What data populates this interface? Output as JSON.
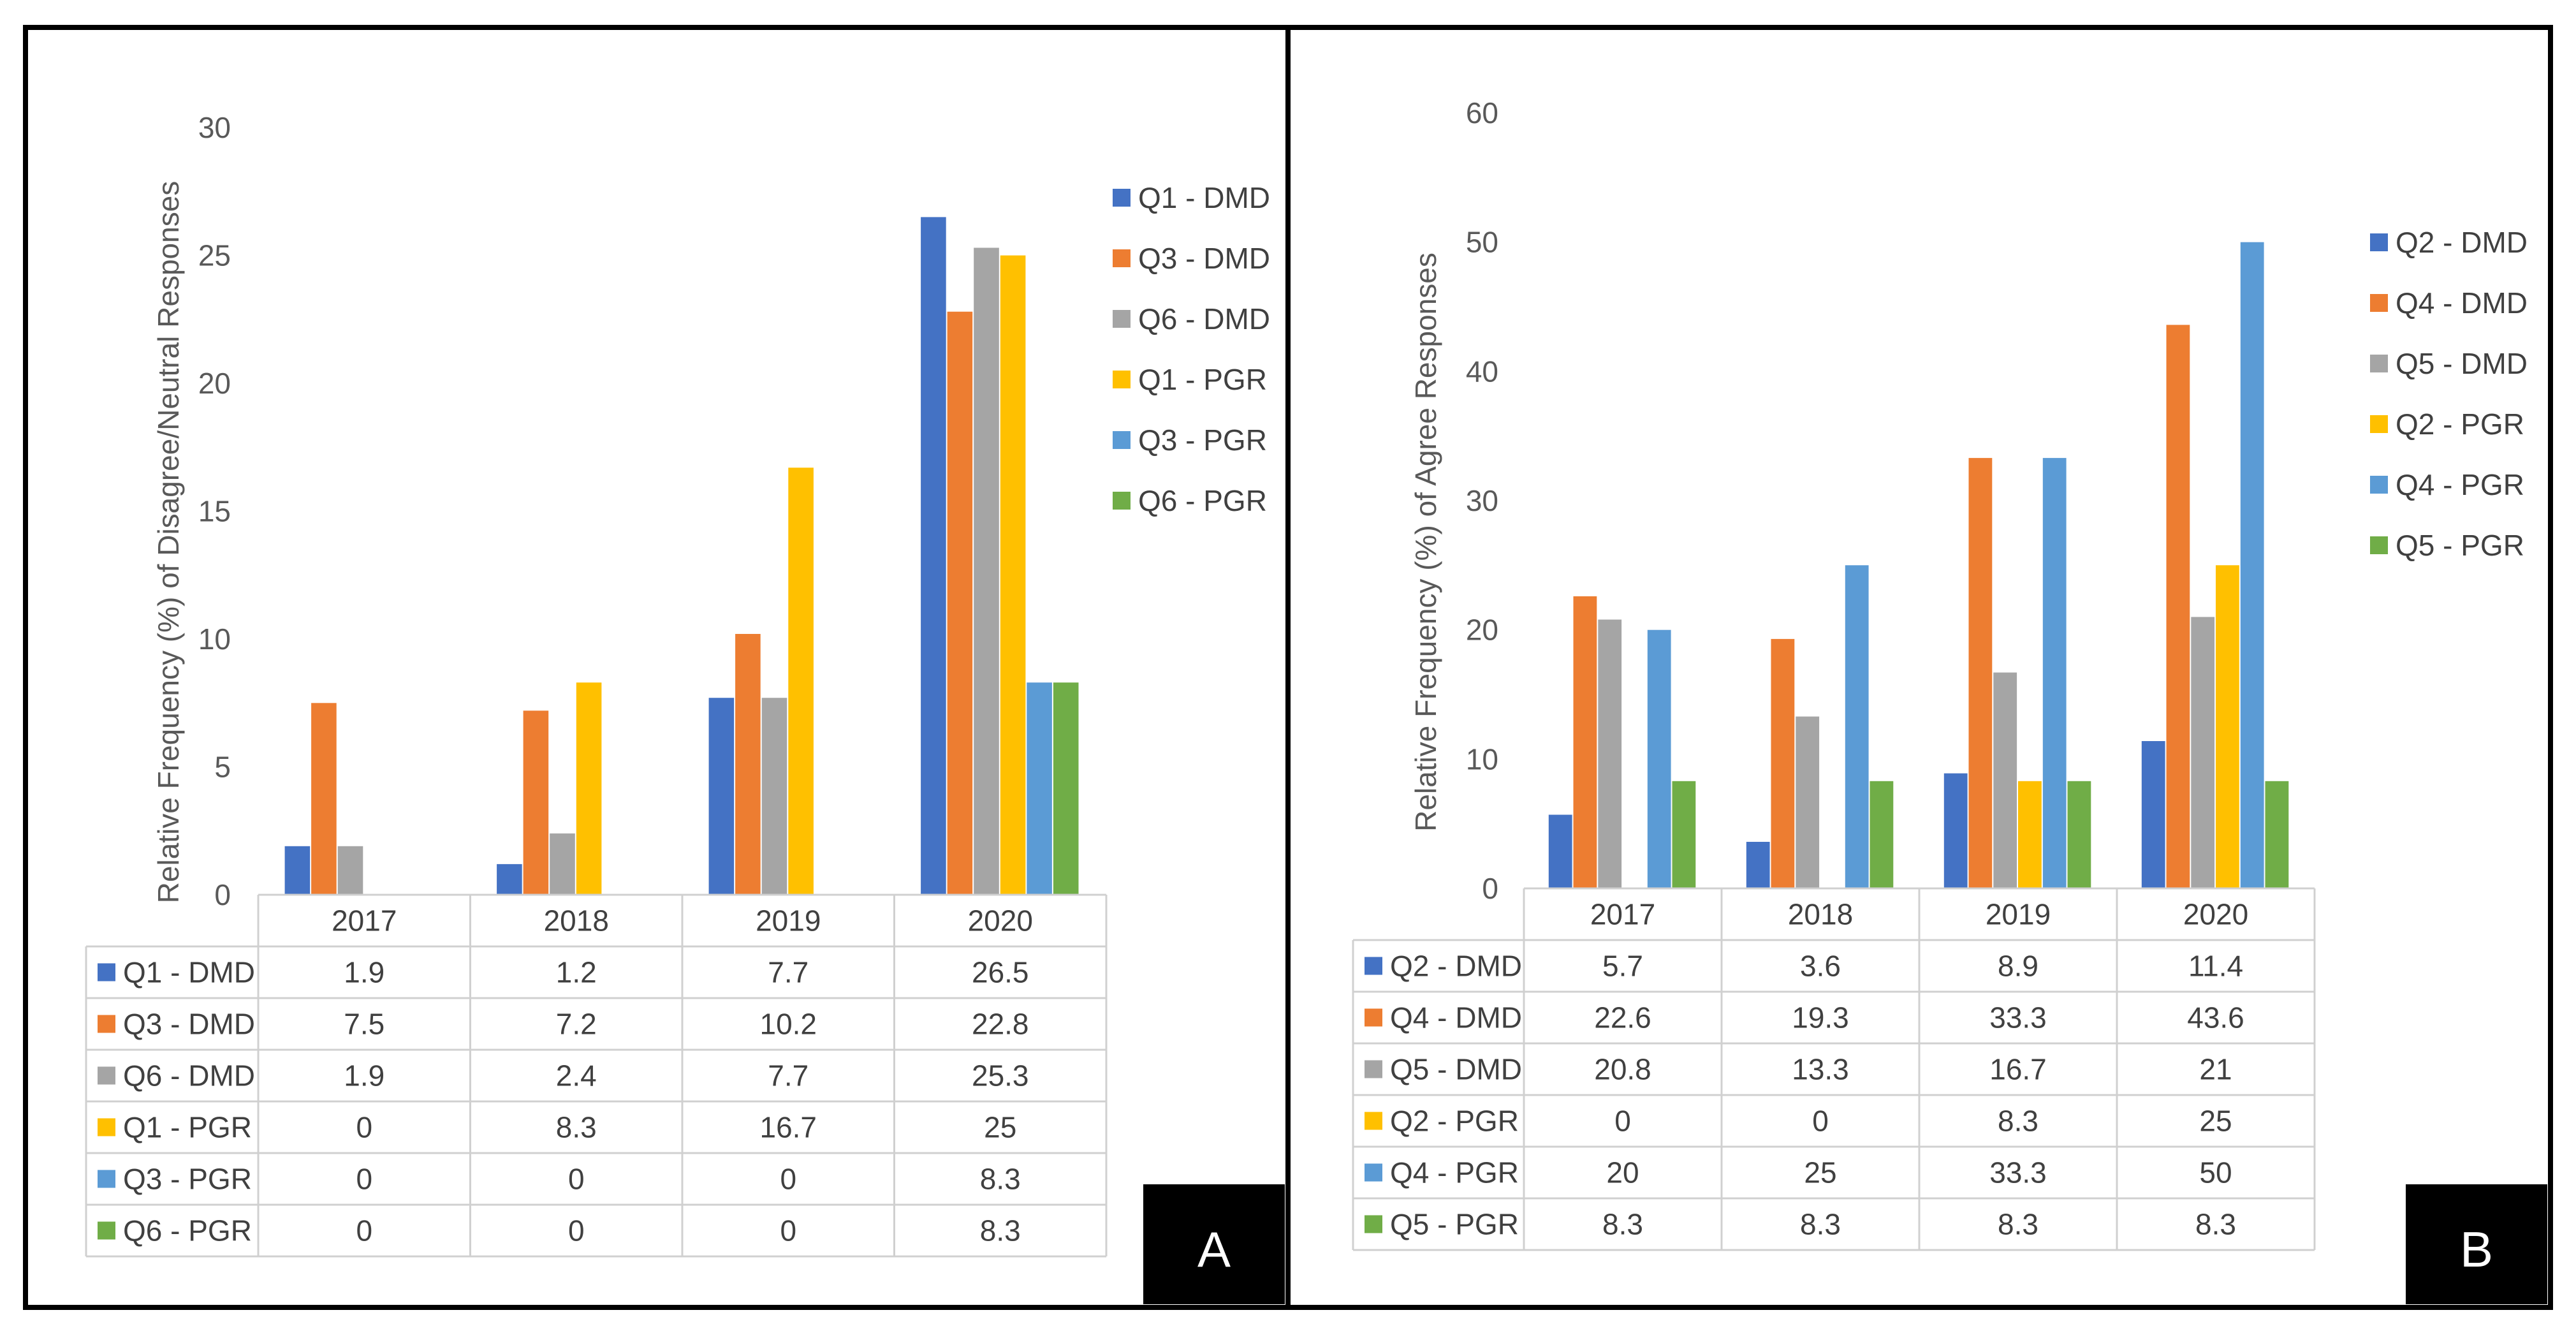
{
  "colors": {
    "dmd_a": "#4472C4",
    "dmd_b": "#ED7D31",
    "dmd_c": "#A5A5A5",
    "pgr_a": "#FFC000",
    "pgr_b": "#5B9BD5",
    "pgr_c": "#70AD47"
  },
  "chart_data": [
    {
      "type": "bar",
      "panel_label": "A",
      "title": "",
      "xlabel": "",
      "ylabel": "Relative Frequency (%) of Disagree/Neutral Responses",
      "ylim": [
        0,
        30
      ],
      "yticks": [
        0,
        5,
        10,
        15,
        20,
        25,
        30
      ],
      "grid": false,
      "legend_position": "right",
      "categories": [
        "2017",
        "2018",
        "2019",
        "2020"
      ],
      "series": [
        {
          "name": "Q1 - DMD",
          "values": [
            1.9,
            1.2,
            7.7,
            26.5
          ],
          "labels": [
            "1.9",
            "1.2",
            "7.7",
            "26.5"
          ]
        },
        {
          "name": "Q3 - DMD",
          "values": [
            7.5,
            7.2,
            10.2,
            22.8
          ],
          "labels": [
            "7.5",
            "7.2",
            "10.2",
            "22.8"
          ]
        },
        {
          "name": "Q6 - DMD",
          "values": [
            1.9,
            2.4,
            7.7,
            25.3
          ],
          "labels": [
            "1.9",
            "2.4",
            "7.7",
            "25.3"
          ]
        },
        {
          "name": "Q1 - PGR",
          "values": [
            0,
            8.3,
            16.7,
            25
          ],
          "labels": [
            "0",
            "8.3",
            "16.7",
            "25"
          ]
        },
        {
          "name": "Q3 - PGR",
          "values": [
            0,
            0,
            0,
            8.3
          ],
          "labels": [
            "0",
            "0",
            "0",
            "8.3"
          ]
        },
        {
          "name": "Q6 - PGR",
          "values": [
            0,
            0,
            0,
            8.3
          ],
          "labels": [
            "0",
            "0",
            "0",
            "8.3"
          ]
        }
      ]
    },
    {
      "type": "bar",
      "panel_label": "B",
      "title": "",
      "xlabel": "",
      "ylabel": "Relative Frequency (%) of Agree Responses",
      "ylim": [
        0,
        60
      ],
      "yticks": [
        0,
        10,
        20,
        30,
        40,
        50,
        60
      ],
      "grid": false,
      "legend_position": "right",
      "categories": [
        "2017",
        "2018",
        "2019",
        "2020"
      ],
      "series": [
        {
          "name": "Q2 - DMD",
          "values": [
            5.7,
            3.6,
            8.9,
            11.4
          ],
          "labels": [
            "5.7",
            "3.6",
            "8.9",
            "11.4"
          ]
        },
        {
          "name": "Q4 - DMD",
          "values": [
            22.6,
            19.3,
            33.3,
            43.6
          ],
          "labels": [
            "22.6",
            "19.3",
            "33.3",
            "43.6"
          ]
        },
        {
          "name": "Q5 - DMD",
          "values": [
            20.8,
            13.3,
            16.7,
            21
          ],
          "labels": [
            "20.8",
            "13.3",
            "16.7",
            "21"
          ]
        },
        {
          "name": "Q2 - PGR",
          "values": [
            0,
            0,
            8.3,
            25
          ],
          "labels": [
            "0",
            "0",
            "8.3",
            "25"
          ]
        },
        {
          "name": "Q4 - PGR",
          "values": [
            20,
            25,
            33.3,
            50
          ],
          "labels": [
            "20",
            "25",
            "33.3",
            "50"
          ]
        },
        {
          "name": "Q5 - PGR",
          "values": [
            8.3,
            8.3,
            8.3,
            8.3
          ],
          "labels": [
            "8.3",
            "8.3",
            "8.3",
            "8.3"
          ]
        }
      ]
    }
  ]
}
